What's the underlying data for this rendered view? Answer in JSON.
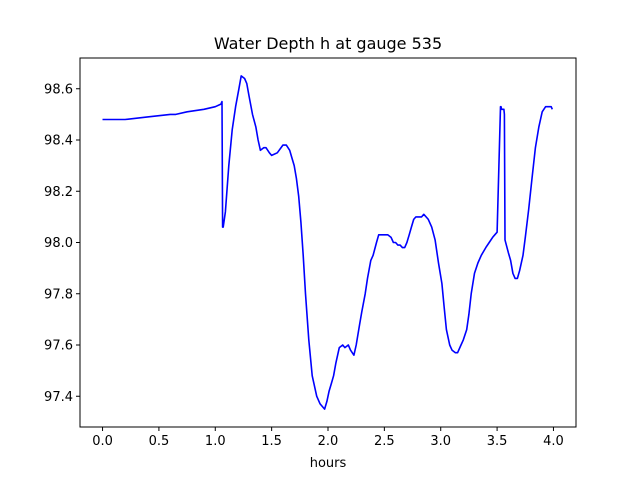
{
  "chart_data": {
    "type": "line",
    "title": "Water Depth h at gauge 535",
    "xlabel": "hours",
    "ylabel": "",
    "xlim": [
      -0.2,
      4.2
    ],
    "ylim": [
      97.28,
      98.72
    ],
    "xticks": [
      0.0,
      0.5,
      1.0,
      1.5,
      2.0,
      2.5,
      3.0,
      3.5,
      4.0
    ],
    "xtick_labels": [
      "0.0",
      "0.5",
      "1.0",
      "1.5",
      "2.0",
      "2.5",
      "3.0",
      "3.5",
      "4.0"
    ],
    "yticks": [
      97.4,
      97.6,
      97.8,
      98.0,
      98.2,
      98.4,
      98.6
    ],
    "ytick_labels": [
      "97.4",
      "97.6",
      "97.8",
      "98.0",
      "98.2",
      "98.4",
      "98.6"
    ],
    "grid": false,
    "series": [
      {
        "color": "#0000ff",
        "x": [
          0.0,
          0.2,
          0.4,
          0.6,
          0.65,
          0.75,
          0.9,
          1.0,
          1.05,
          1.06,
          1.065,
          1.07,
          1.09,
          1.12,
          1.15,
          1.18,
          1.21,
          1.23,
          1.26,
          1.28,
          1.3,
          1.33,
          1.36,
          1.38,
          1.4,
          1.43,
          1.45,
          1.48,
          1.5,
          1.55,
          1.6,
          1.63,
          1.66,
          1.68,
          1.7,
          1.72,
          1.74,
          1.76,
          1.78,
          1.8,
          1.83,
          1.86,
          1.9,
          1.93,
          1.97,
          1.99,
          2.01,
          2.03,
          2.05,
          2.07,
          2.1,
          2.13,
          2.15,
          2.18,
          2.2,
          2.23,
          2.25,
          2.28,
          2.3,
          2.33,
          2.35,
          2.38,
          2.4,
          2.43,
          2.45,
          2.48,
          2.5,
          2.53,
          2.56,
          2.58,
          2.6,
          2.62,
          2.64,
          2.66,
          2.68,
          2.7,
          2.72,
          2.74,
          2.76,
          2.78,
          2.8,
          2.83,
          2.85,
          2.87,
          2.89,
          2.92,
          2.95,
          2.98,
          3.01,
          3.03,
          3.05,
          3.08,
          3.1,
          3.13,
          3.15,
          3.18,
          3.2,
          3.23,
          3.25,
          3.27,
          3.3,
          3.33,
          3.36,
          3.4,
          3.43,
          3.46,
          3.48,
          3.5,
          3.53,
          3.535,
          3.54,
          3.56,
          3.565,
          3.57,
          3.6,
          3.62,
          3.64,
          3.66,
          3.68,
          3.7,
          3.73,
          3.75,
          3.78,
          3.81,
          3.84,
          3.87,
          3.9,
          3.93,
          3.96,
          3.98,
          3.99
        ],
        "y": [
          98.48,
          98.48,
          98.49,
          98.5,
          98.5,
          98.51,
          98.52,
          98.53,
          98.54,
          98.55,
          98.06,
          98.06,
          98.12,
          98.3,
          98.44,
          98.53,
          98.6,
          98.65,
          98.64,
          98.62,
          98.57,
          98.5,
          98.45,
          98.4,
          98.36,
          98.37,
          98.37,
          98.35,
          98.34,
          98.35,
          98.38,
          98.38,
          98.36,
          98.33,
          98.3,
          98.25,
          98.18,
          98.08,
          97.95,
          97.8,
          97.62,
          97.48,
          97.4,
          97.37,
          97.35,
          97.38,
          97.42,
          97.45,
          97.48,
          97.53,
          97.59,
          97.6,
          97.59,
          97.6,
          97.58,
          97.56,
          97.6,
          97.68,
          97.73,
          97.8,
          97.86,
          97.93,
          97.95,
          98.0,
          98.03,
          98.03,
          98.03,
          98.03,
          98.02,
          98.0,
          98.0,
          97.99,
          97.99,
          97.98,
          97.98,
          98.0,
          98.03,
          98.06,
          98.09,
          98.1,
          98.1,
          98.1,
          98.11,
          98.1,
          98.09,
          98.06,
          98.01,
          97.92,
          97.84,
          97.75,
          97.66,
          97.6,
          97.58,
          97.57,
          97.57,
          97.6,
          97.62,
          97.66,
          97.72,
          97.8,
          97.88,
          97.92,
          97.95,
          97.98,
          98.0,
          98.02,
          98.03,
          98.04,
          98.53,
          98.53,
          98.52,
          98.52,
          98.5,
          98.01,
          97.96,
          97.93,
          97.88,
          97.86,
          97.86,
          97.89,
          97.95,
          98.02,
          98.13,
          98.25,
          98.37,
          98.45,
          98.51,
          98.53,
          98.53,
          98.53,
          98.52
        ]
      }
    ]
  }
}
